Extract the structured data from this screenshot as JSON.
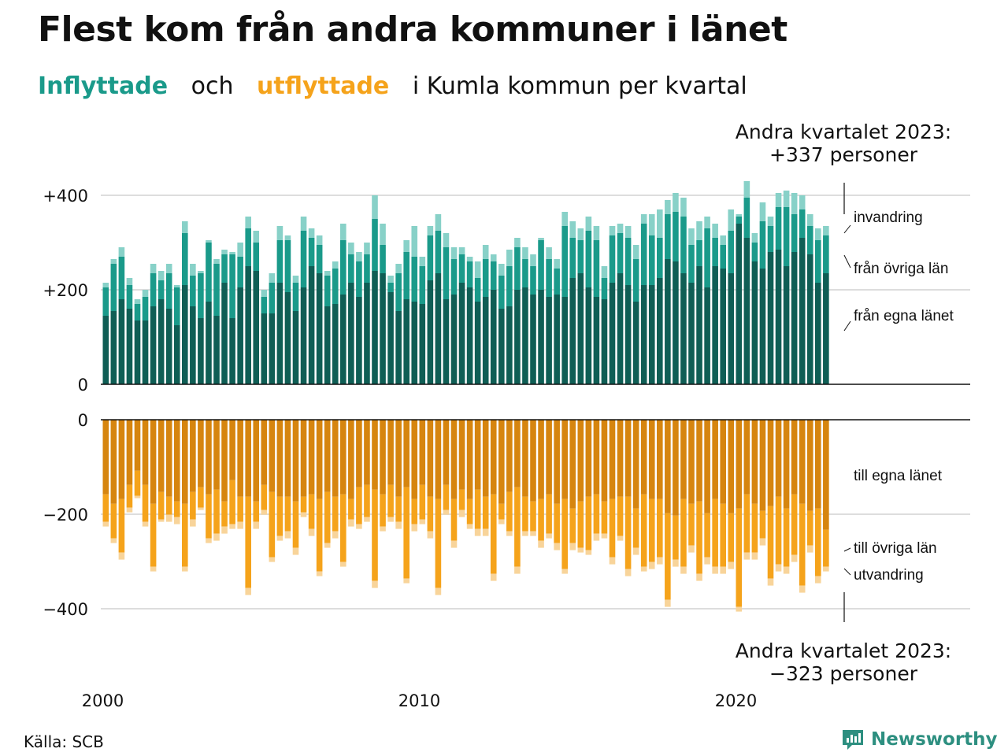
{
  "header": {
    "title": "Flest kom från andra kommuner i länet",
    "subtitle_in": "Inflyttade",
    "subtitle_and": "och",
    "subtitle_out": "utflyttade",
    "subtitle_rest": "i Kumla kommun per kvartal"
  },
  "footer": {
    "source": "Källa: SCB",
    "brand": "Newsworthy"
  },
  "colors": {
    "in_egna": "#0f5e55",
    "in_ovriga": "#1a9a8a",
    "in_invandring": "#88d1c8",
    "out_egna": "#d6850f",
    "out_ovriga": "#f5a31b",
    "out_utvandring": "#f8d49a"
  },
  "chart_data": {
    "type": "bar",
    "stacked": true,
    "x_start": "2000 Q1",
    "x_ticks": [
      "2000",
      "2010",
      "2020"
    ],
    "in_yticks": [
      "+400",
      "+200",
      "0"
    ],
    "out_yticks": [
      "0",
      "−200",
      "−400"
    ],
    "in_ylim": [
      0,
      400
    ],
    "out_ylim": [
      -400,
      0
    ],
    "grid": true,
    "annotation_in": {
      "line1": "Andra kvartalet 2023:",
      "line2": "+337 personer"
    },
    "annotation_out": {
      "line1": "Andra kvartalet 2023:",
      "line2": "−323 personer"
    },
    "legend_in": [
      "invandring",
      "från övriga län",
      "från egna länet"
    ],
    "legend_out": [
      "till egna länet",
      "till övriga län",
      "utvandring"
    ],
    "inflow": {
      "fran_egna_lanet": [
        145,
        155,
        180,
        160,
        135,
        135,
        165,
        180,
        160,
        125,
        210,
        165,
        140,
        175,
        145,
        215,
        140,
        205,
        250,
        240,
        150,
        150,
        215,
        195,
        155,
        205,
        250,
        235,
        165,
        170,
        190,
        215,
        185,
        215,
        240,
        235,
        195,
        155,
        180,
        175,
        170,
        220,
        235,
        180,
        190,
        215,
        205,
        175,
        185,
        200,
        160,
        165,
        200,
        205,
        190,
        200,
        185,
        190,
        185,
        225,
        235,
        205,
        185,
        180,
        215,
        235,
        210,
        175,
        210,
        210,
        225,
        265,
        260,
        235,
        215,
        250,
        205,
        250,
        245,
        235,
        340,
        310,
        260,
        245,
        280,
        285,
        250,
        280,
        310,
        275,
        215,
        235
      ],
      "fran_ovriga_lan": [
        60,
        100,
        90,
        50,
        35,
        50,
        70,
        40,
        75,
        80,
        110,
        65,
        95,
        125,
        110,
        60,
        135,
        65,
        80,
        60,
        35,
        65,
        90,
        110,
        60,
        120,
        60,
        60,
        65,
        75,
        115,
        60,
        75,
        60,
        110,
        60,
        20,
        80,
        100,
        95,
        80,
        95,
        90,
        110,
        75,
        60,
        55,
        50,
        80,
        60,
        70,
        85,
        90,
        60,
        60,
        105,
        80,
        55,
        150,
        85,
        70,
        120,
        120,
        45,
        100,
        85,
        100,
        90,
        130,
        105,
        85,
        95,
        105,
        120,
        80,
        55,
        125,
        60,
        50,
        90,
        15,
        85,
        40,
        100,
        55,
        90,
        125,
        80,
        60,
        60,
        90,
        80
      ],
      "invandring": [
        10,
        10,
        20,
        15,
        10,
        15,
        20,
        20,
        20,
        5,
        25,
        25,
        5,
        5,
        10,
        10,
        5,
        30,
        25,
        25,
        15,
        20,
        30,
        10,
        15,
        30,
        20,
        20,
        10,
        15,
        35,
        25,
        20,
        25,
        50,
        45,
        15,
        20,
        25,
        65,
        20,
        20,
        35,
        30,
        25,
        15,
        10,
        35,
        30,
        15,
        25,
        35,
        20,
        25,
        25,
        5,
        25,
        20,
        30,
        35,
        25,
        30,
        30,
        25,
        20,
        20,
        25,
        30,
        20,
        45,
        60,
        30,
        40,
        40,
        35,
        40,
        25,
        30,
        20,
        45,
        5,
        35,
        20,
        40,
        20,
        30,
        35,
        45,
        30,
        25,
        25,
        20
      ]
    },
    "outflow": {
      "till_egna_lanet": [
        158,
        178,
        168,
        138,
        108,
        138,
        178,
        153,
        163,
        173,
        178,
        153,
        143,
        158,
        148,
        173,
        128,
        163,
        163,
        173,
        138,
        153,
        163,
        163,
        173,
        163,
        158,
        168,
        153,
        163,
        158,
        168,
        143,
        138,
        148,
        158,
        138,
        163,
        143,
        168,
        138,
        163,
        168,
        138,
        168,
        148,
        168,
        148,
        163,
        158,
        178,
        153,
        143,
        163,
        173,
        168,
        158,
        178,
        168,
        188,
        173,
        163,
        158,
        173,
        168,
        163,
        163,
        188,
        158,
        168,
        168,
        198,
        203,
        168,
        178,
        173,
        198,
        168,
        178,
        198,
        188,
        158,
        178,
        193,
        183,
        163,
        188,
        158,
        178,
        193,
        188,
        233
      ],
      "till_ovriga_lan": [
        58,
        73,
        113,
        48,
        53,
        78,
        133,
        58,
        38,
        33,
        133,
        58,
        43,
        93,
        93,
        53,
        93,
        53,
        193,
        43,
        53,
        138,
        83,
        73,
        98,
        33,
        73,
        153,
        108,
        73,
        143,
        43,
        78,
        68,
        193,
        68,
        68,
        53,
        193,
        53,
        73,
        73,
        188,
        53,
        88,
        43,
        53,
        83,
        68,
        168,
        33,
        83,
        168,
        73,
        63,
        88,
        83,
        83,
        148,
        73,
        98,
        113,
        83,
        68,
        123,
        83,
        153,
        83,
        153,
        133,
        123,
        183,
        93,
        143,
        88,
        153,
        93,
        143,
        133,
        103,
        208,
        123,
        103,
        58,
        153,
        143,
        123,
        128,
        173,
        73,
        143,
        78
      ],
      "utvandring": [
        10,
        10,
        15,
        10,
        5,
        10,
        10,
        5,
        15,
        15,
        10,
        15,
        5,
        10,
        15,
        15,
        10,
        15,
        15,
        15,
        10,
        10,
        10,
        15,
        15,
        10,
        15,
        10,
        10,
        15,
        10,
        15,
        10,
        10,
        15,
        10,
        10,
        15,
        10,
        15,
        10,
        15,
        15,
        10,
        15,
        15,
        10,
        15,
        15,
        15,
        10,
        10,
        15,
        10,
        10,
        15,
        10,
        15,
        10,
        15,
        10,
        10,
        15,
        10,
        15,
        10,
        15,
        15,
        10,
        15,
        15,
        15,
        15,
        15,
        15,
        15,
        15,
        15,
        15,
        15,
        10,
        15,
        15,
        15,
        15,
        15,
        15,
        15,
        15,
        15,
        15,
        10
      ]
    }
  }
}
